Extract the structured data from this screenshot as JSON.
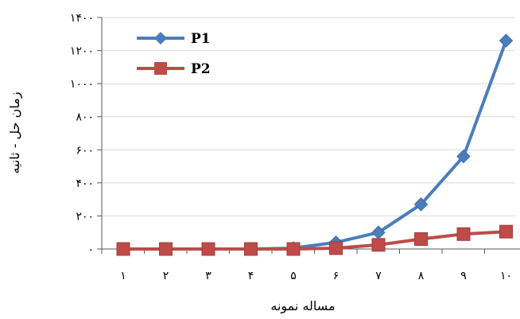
{
  "chart_data": {
    "type": "line",
    "categories": [
      "۱",
      "۲",
      "۳",
      "۴",
      "۵",
      "۶",
      "۷",
      "۸",
      "۹",
      "۱۰"
    ],
    "x": [
      1,
      2,
      3,
      4,
      5,
      6,
      7,
      8,
      9,
      10
    ],
    "series": [
      {
        "name": "P1",
        "color": "#4a7ebb",
        "marker": "diamond",
        "values": [
          0,
          0,
          0,
          0,
          5,
          40,
          100,
          270,
          560,
          1260
        ]
      },
      {
        "name": "P2",
        "color": "#be4b48",
        "marker": "square",
        "values": [
          0,
          0,
          0,
          0,
          0,
          5,
          25,
          60,
          90,
          105
        ]
      }
    ],
    "yticks": [
      0,
      200,
      400,
      600,
      800,
      1000,
      1200,
      1400
    ],
    "ytick_labels": [
      "۰",
      "۲۰۰",
      "۴۰۰",
      "۶۰۰",
      "۸۰۰",
      "۱۰۰۰",
      "۱۲۰۰",
      "۱۴۰۰"
    ],
    "ylim": [
      0,
      1400
    ],
    "xlabel": "مساله نمونه",
    "ylabel": "زمان حل - ثانیه",
    "title": "",
    "grid": true,
    "legend": "top-left"
  }
}
